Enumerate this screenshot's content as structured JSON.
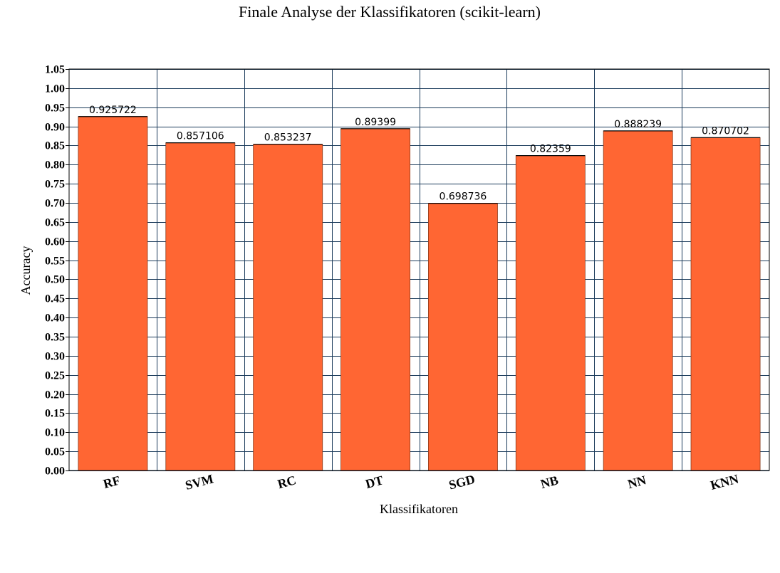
{
  "chart_data": {
    "type": "bar",
    "title": "Finale Analyse der Klassifikatoren (scikit-learn)",
    "xlabel": "Klassifikatoren",
    "ylabel": "Accuracy",
    "categories": [
      "RF",
      "SVM",
      "RC",
      "DT",
      "SGD",
      "NB",
      "NN",
      "KNN"
    ],
    "values": [
      0.925722,
      0.857106,
      0.853237,
      0.89399,
      0.698736,
      0.82359,
      0.888239,
      0.870702
    ],
    "data_labels": [
      "0.925722",
      "0.857106",
      "0.853237",
      "0.89399",
      "0.698736",
      "0.82359",
      "0.888239",
      "0.870702"
    ],
    "yticks": [
      "0.00",
      "0.05",
      "0.10",
      "0.15",
      "0.20",
      "0.25",
      "0.30",
      "0.35",
      "0.40",
      "0.45",
      "0.50",
      "0.55",
      "0.60",
      "0.65",
      "0.70",
      "0.75",
      "0.80",
      "0.85",
      "0.90",
      "0.95",
      "1.00",
      "1.05"
    ],
    "ylim": [
      0,
      1.05
    ],
    "grid": true,
    "bar_color": "#ff6633",
    "grid_color": "#1a3a5a"
  }
}
